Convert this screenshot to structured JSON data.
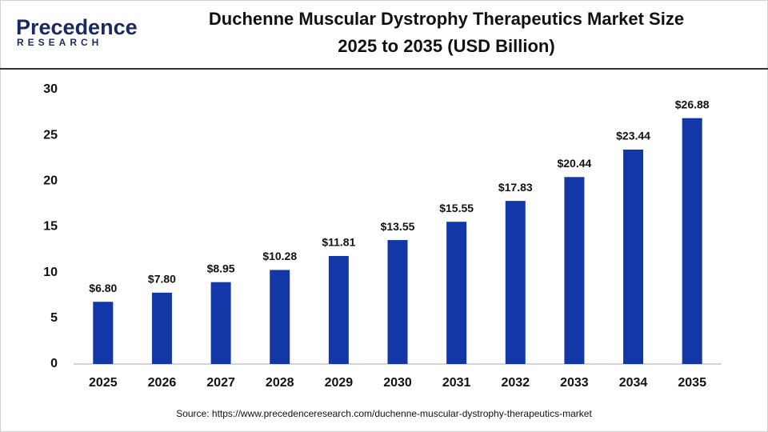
{
  "logo": {
    "name": "Precedence",
    "tagline": "RESEARCH"
  },
  "chart_data": {
    "type": "bar",
    "title": "Duchenne Muscular Dystrophy Therapeutics Market Size",
    "subtitle": "2025 to 2035 (USD Billion)",
    "categories": [
      "2025",
      "2026",
      "2027",
      "2028",
      "2029",
      "2030",
      "2031",
      "2032",
      "2033",
      "2034",
      "2035"
    ],
    "values": [
      6.8,
      7.8,
      8.95,
      10.28,
      11.81,
      13.55,
      15.55,
      17.83,
      20.44,
      23.44,
      26.88
    ],
    "value_labels": [
      "$6.80",
      "$7.80",
      "$8.95",
      "$10.28",
      "$11.81",
      "$13.55",
      "$15.55",
      "$17.83",
      "$20.44",
      "$23.44",
      "$26.88"
    ],
    "color": "#1238a8",
    "ylim": [
      0,
      30
    ],
    "yticks": [
      0,
      5,
      10,
      15,
      20,
      25,
      30
    ],
    "grid": false,
    "source": "Source: https://www.precedenceresearch.com/duchenne-muscular-dystrophy-therapeutics-market"
  }
}
